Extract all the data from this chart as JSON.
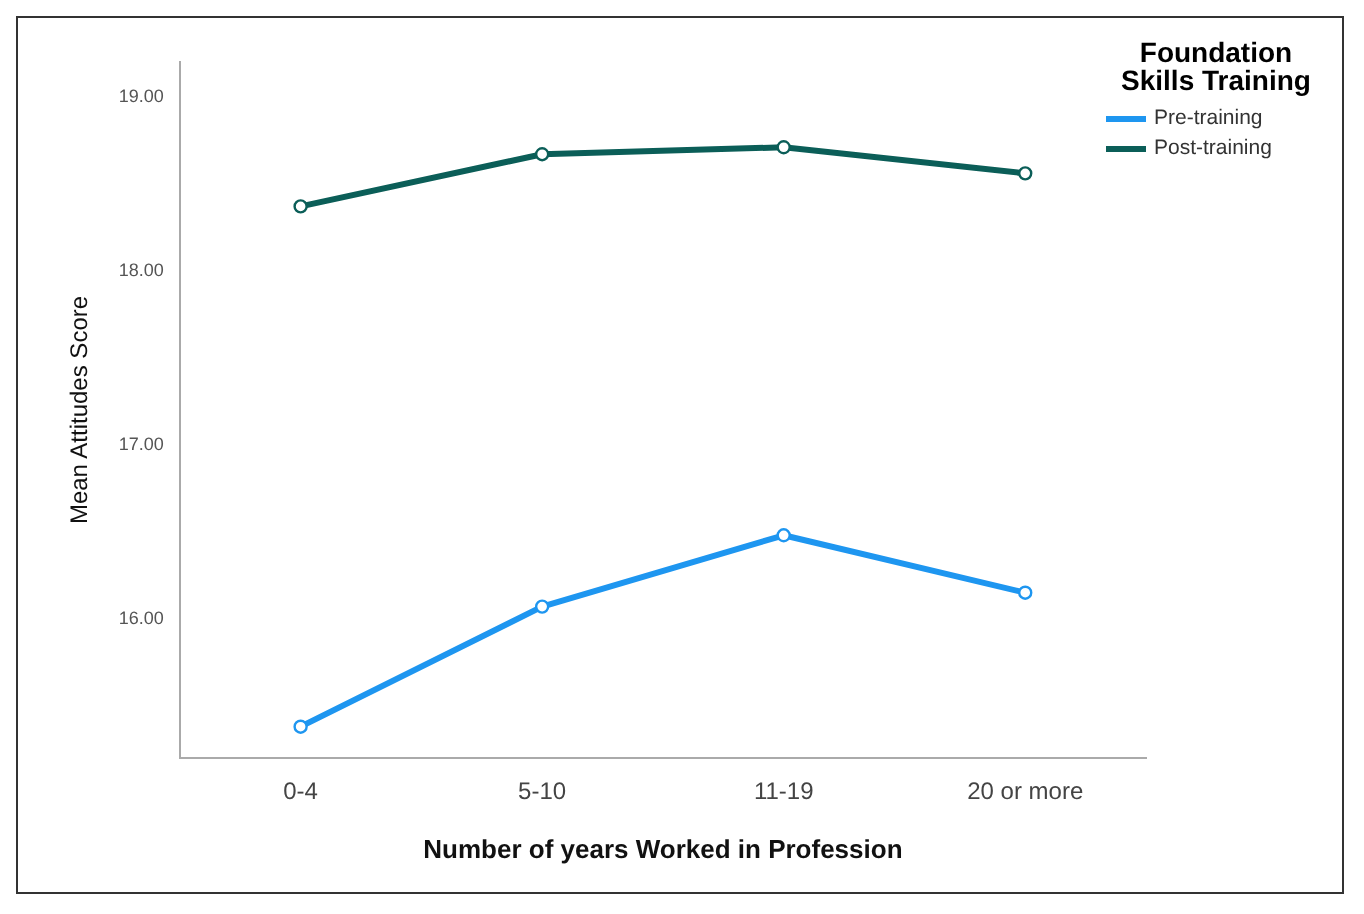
{
  "chart_data": {
    "type": "line",
    "xlabel": "Number of years Worked in Profession",
    "ylabel": "Mean Attitudes Score",
    "legend_title": "Foundation Skills Training",
    "categories": [
      "0-4",
      "5-10",
      "11-19",
      "20 or more"
    ],
    "series": [
      {
        "name": "Pre-training",
        "color": "#1e96f0",
        "values": [
          15.38,
          16.07,
          16.48,
          16.15
        ]
      },
      {
        "name": "Post-training",
        "color": "#0b5e58",
        "values": [
          18.37,
          18.67,
          18.71,
          18.56
        ]
      }
    ],
    "ylim": [
      15.2,
      19.2
    ],
    "yticks": [
      {
        "value": 16,
        "label": "16.00"
      },
      {
        "value": 17,
        "label": "17.00"
      },
      {
        "value": 18,
        "label": "18.00"
      },
      {
        "value": 19,
        "label": "19.00"
      }
    ],
    "grid": false,
    "legend": "top right",
    "marker": "circle",
    "line_style": "solid"
  }
}
